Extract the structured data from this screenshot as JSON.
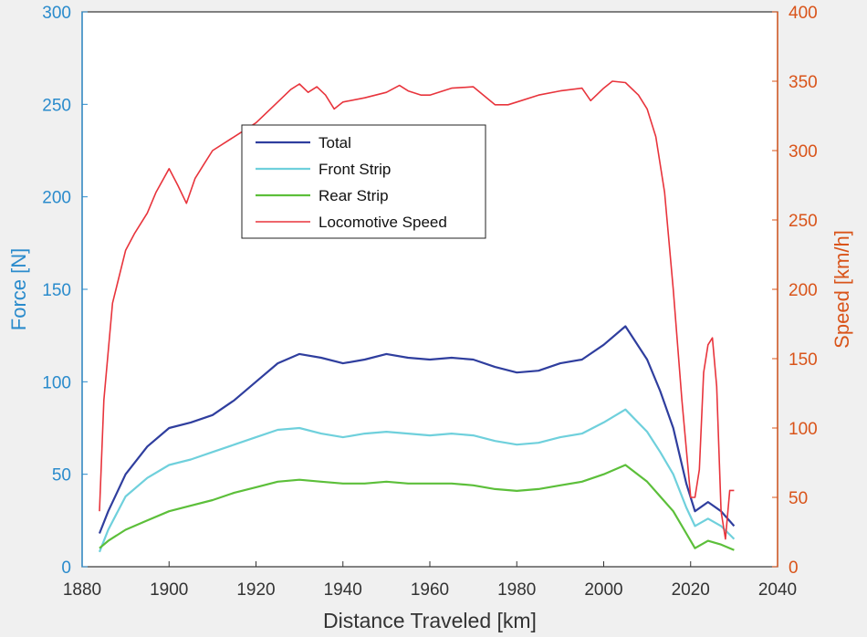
{
  "chart_data": {
    "type": "line",
    "xlabel": "Distance Traveled [km]",
    "ylabel_left": "Force [N]",
    "ylabel_right": "Speed [km/h]",
    "xlim": [
      1880,
      2040
    ],
    "ylim_left": [
      0,
      300
    ],
    "ylim_right": [
      0,
      400
    ],
    "xticks": [
      1880,
      1900,
      1920,
      1940,
      1960,
      1980,
      2000,
      2020,
      2040
    ],
    "yticks_left": [
      0,
      50,
      100,
      150,
      200,
      250,
      300
    ],
    "yticks_right": [
      0,
      50,
      100,
      150,
      200,
      250,
      300,
      350,
      400
    ],
    "grid": false,
    "legend_position": "upper-left-center",
    "colors": {
      "total": "#2f3e9e",
      "front_strip": "#6fd0dc",
      "rear_strip": "#5cbf3a",
      "speed": "#e8343c",
      "left_axis": "#2a8bcc",
      "right_axis": "#d9541a",
      "bottom_axis": "#333333"
    },
    "series": [
      {
        "name": "Total",
        "axis": "left",
        "x": [
          1884,
          1886,
          1890,
          1895,
          1900,
          1905,
          1910,
          1915,
          1920,
          1925,
          1930,
          1935,
          1940,
          1945,
          1950,
          1955,
          1960,
          1965,
          1970,
          1975,
          1980,
          1985,
          1990,
          1995,
          2000,
          2005,
          2010,
          2013,
          2016,
          2019,
          2021,
          2024,
          2027,
          2030
        ],
        "y": [
          18,
          30,
          50,
          65,
          75,
          78,
          82,
          90,
          100,
          110,
          115,
          113,
          110,
          112,
          115,
          113,
          112,
          113,
          112,
          108,
          105,
          106,
          110,
          112,
          120,
          130,
          112,
          95,
          75,
          45,
          30,
          35,
          30,
          22
        ]
      },
      {
        "name": "Front Strip",
        "axis": "left",
        "x": [
          1884,
          1886,
          1890,
          1895,
          1900,
          1905,
          1910,
          1915,
          1920,
          1925,
          1930,
          1935,
          1940,
          1945,
          1950,
          1955,
          1960,
          1965,
          1970,
          1975,
          1980,
          1985,
          1990,
          1995,
          2000,
          2005,
          2010,
          2013,
          2016,
          2019,
          2021,
          2024,
          2027,
          2030
        ],
        "y": [
          8,
          20,
          38,
          48,
          55,
          58,
          62,
          66,
          70,
          74,
          75,
          72,
          70,
          72,
          73,
          72,
          71,
          72,
          71,
          68,
          66,
          67,
          70,
          72,
          78,
          85,
          73,
          62,
          50,
          32,
          22,
          26,
          22,
          15
        ]
      },
      {
        "name": "Rear Strip",
        "axis": "left",
        "x": [
          1884,
          1886,
          1890,
          1895,
          1900,
          1905,
          1910,
          1915,
          1920,
          1925,
          1930,
          1935,
          1940,
          1945,
          1950,
          1955,
          1960,
          1965,
          1970,
          1975,
          1980,
          1985,
          1990,
          1995,
          2000,
          2005,
          2010,
          2013,
          2016,
          2019,
          2021,
          2024,
          2027,
          2030
        ],
        "y": [
          10,
          14,
          20,
          25,
          30,
          33,
          36,
          40,
          43,
          46,
          47,
          46,
          45,
          45,
          46,
          45,
          45,
          45,
          44,
          42,
          41,
          42,
          44,
          46,
          50,
          55,
          46,
          38,
          30,
          18,
          10,
          14,
          12,
          9
        ]
      },
      {
        "name": "Locomotive Speed",
        "axis": "right",
        "x": [
          1884,
          1885,
          1887,
          1890,
          1892,
          1895,
          1897,
          1900,
          1902,
          1904,
          1906,
          1908,
          1910,
          1915,
          1920,
          1925,
          1928,
          1930,
          1932,
          1934,
          1936,
          1938,
          1940,
          1945,
          1950,
          1953,
          1955,
          1958,
          1960,
          1965,
          1970,
          1975,
          1978,
          1980,
          1985,
          1990,
          1995,
          1997,
          2000,
          2002,
          2005,
          2008,
          2010,
          2012,
          2014,
          2016,
          2018,
          2020,
          2021,
          2022,
          2023,
          2024,
          2025,
          2026,
          2027,
          2028,
          2029,
          2030
        ],
        "y": [
          40,
          120,
          190,
          228,
          240,
          255,
          270,
          287,
          275,
          262,
          280,
          290,
          300,
          310,
          320,
          335,
          344,
          348,
          342,
          346,
          340,
          330,
          335,
          338,
          342,
          347,
          343,
          340,
          340,
          345,
          346,
          333,
          333,
          335,
          340,
          343,
          345,
          336,
          345,
          350,
          349,
          340,
          330,
          310,
          270,
          200,
          120,
          50,
          50,
          70,
          140,
          160,
          165,
          130,
          40,
          20,
          55,
          55
        ]
      }
    ]
  }
}
